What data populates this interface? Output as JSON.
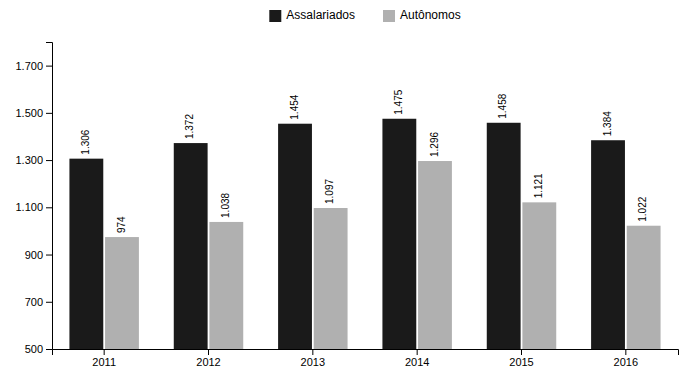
{
  "chart_data": {
    "type": "bar",
    "categories": [
      "2011",
      "2012",
      "2013",
      "2014",
      "2015",
      "2016"
    ],
    "series": [
      {
        "name": "Assalariados",
        "color": "#1a1a1a",
        "values": [
          1306,
          1372,
          1454,
          1475,
          1458,
          1384
        ],
        "value_labels": [
          "1.306",
          "1.372",
          "1.454",
          "1.475",
          "1.458",
          "1.384"
        ]
      },
      {
        "name": "Autônomos",
        "color": "#b0b0b0",
        "values": [
          974,
          1038,
          1097,
          1296,
          1121,
          1022
        ],
        "value_labels": [
          "974",
          "1.038",
          "1.097",
          "1.296",
          "1.121",
          "1.022"
        ]
      }
    ],
    "ylim": [
      500,
      1800
    ],
    "yticks": [
      500,
      700,
      900,
      {
        "value": 1100,
        "label": "1.100"
      },
      {
        "value": 1300,
        "label": "1.300"
      },
      {
        "value": 1500,
        "label": "1.500"
      },
      {
        "value": 1700,
        "label": "1.700"
      }
    ],
    "grid": false,
    "legend": "top",
    "data_labels": true
  }
}
